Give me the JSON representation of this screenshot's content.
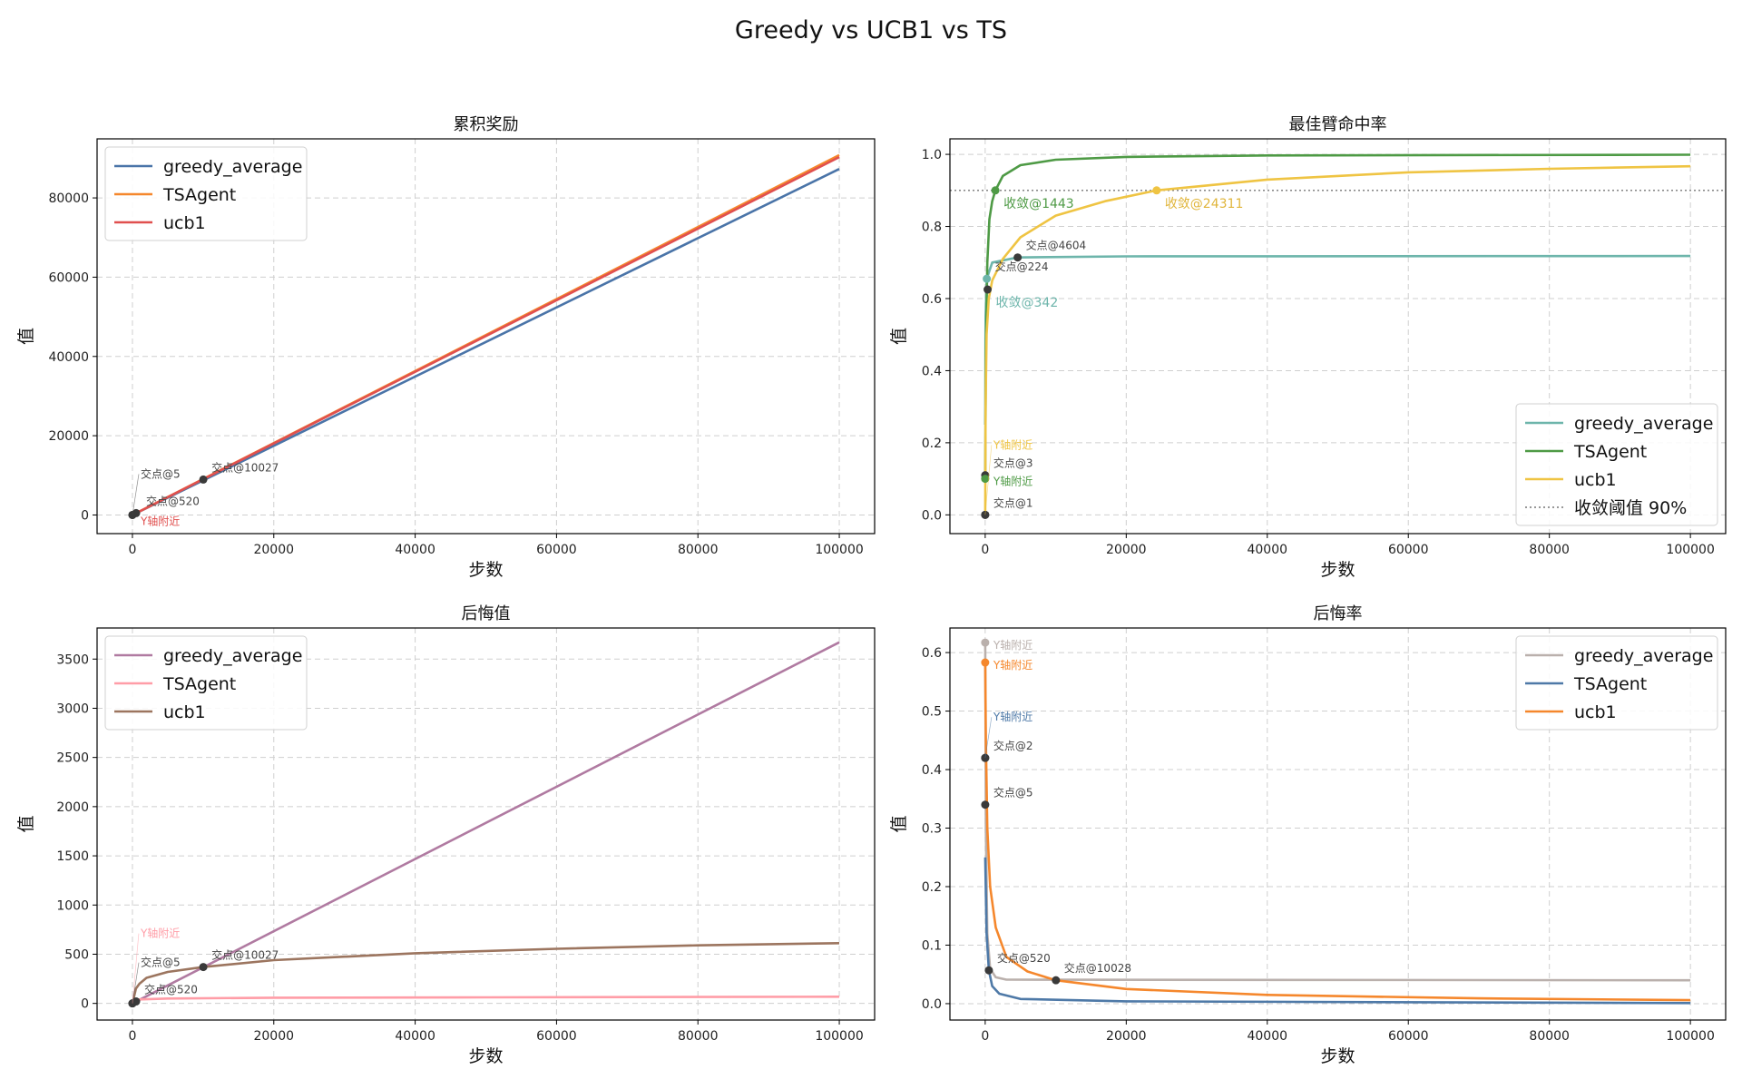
{
  "figure_title": "Greedy vs UCB1 vs TS",
  "chart_data": [
    {
      "type": "line",
      "title": "累积奖励",
      "xlabel": "步数",
      "ylabel": "值",
      "xlim": [
        -5000,
        105000
      ],
      "ylim": [
        -4700,
        94900
      ],
      "xticks": [
        0,
        20000,
        40000,
        60000,
        80000,
        100000
      ],
      "yticks": [
        0,
        20000,
        40000,
        60000,
        80000
      ],
      "grid": true,
      "legend": "top-left",
      "series": [
        {
          "name": "greedy_average",
          "color": "#4a74a8",
          "points": [
            [
              0,
              0
            ],
            [
              100000,
              87300
            ]
          ]
        },
        {
          "name": "TSAgent",
          "color": "#f5872c",
          "points": [
            [
              0,
              0
            ],
            [
              100000,
              90800
            ]
          ]
        },
        {
          "name": "ucb1",
          "color": "#e0504f",
          "points": [
            [
              0,
              0
            ],
            [
              100000,
              90300
            ]
          ]
        }
      ],
      "annotations": [
        {
          "text": "交点@10027",
          "x": 10027,
          "y": 8950,
          "color": "#444444",
          "marker": "#3a3a3a"
        },
        {
          "text": "交点@520",
          "x": 520,
          "y": 470,
          "color": "#444444",
          "marker": "#3a3a3a",
          "dx": 1
        },
        {
          "text": "交点@5",
          "x": 5,
          "y": 5,
          "color": "#444444",
          "marker": "#3a3a3a"
        },
        {
          "text": "Y轴附近",
          "x": 0,
          "y": 0,
          "color": "#e0504f",
          "marker": "#3a3a3a",
          "dy": 1
        }
      ]
    },
    {
      "type": "line",
      "title": "最佳臂命中率",
      "xlabel": "步数",
      "ylabel": "值",
      "xlim": [
        -5000,
        105000
      ],
      "ylim": [
        -0.052,
        1.043
      ],
      "xticks": [
        0,
        20000,
        40000,
        60000,
        80000,
        100000
      ],
      "yticks": [
        0.0,
        0.2,
        0.4,
        0.6,
        0.8,
        1.0
      ],
      "ytick_decimals": 1,
      "grid": true,
      "legend": "bottom-right",
      "threshold": {
        "name": "收敛阈值 90%",
        "value": 0.9,
        "color": "#777777"
      },
      "series": [
        {
          "name": "greedy_average",
          "color": "#6db5ab",
          "points": [
            [
              0,
              0.25
            ],
            [
              50,
              0.55
            ],
            [
              224,
              0.655
            ],
            [
              1000,
              0.7
            ],
            [
              4604,
              0.714
            ],
            [
              20000,
              0.717
            ],
            [
              100000,
              0.718
            ]
          ]
        },
        {
          "name": "TSAgent",
          "color": "#4e9a45",
          "points": [
            [
              0,
              0.1
            ],
            [
              100,
              0.45
            ],
            [
              300,
              0.7
            ],
            [
              600,
              0.82
            ],
            [
              1000,
              0.87
            ],
            [
              1443,
              0.9
            ],
            [
              2500,
              0.94
            ],
            [
              5000,
              0.97
            ],
            [
              10000,
              0.985
            ],
            [
              20000,
              0.993
            ],
            [
              40000,
              0.997
            ],
            [
              100000,
              0.999
            ]
          ]
        },
        {
          "name": "ucb1",
          "color": "#efc443",
          "points": [
            [
              0,
              0
            ],
            [
              50,
              0.3
            ],
            [
              200,
              0.5
            ],
            [
              500,
              0.6
            ],
            [
              1000,
              0.65
            ],
            [
              2500,
              0.71
            ],
            [
              5000,
              0.77
            ],
            [
              10000,
              0.83
            ],
            [
              17000,
              0.87
            ],
            [
              24311,
              0.9
            ],
            [
              40000,
              0.93
            ],
            [
              60000,
              0.95
            ],
            [
              80000,
              0.96
            ],
            [
              100000,
              0.967
            ]
          ]
        }
      ],
      "annotations": [
        {
          "text": "收敛@1443",
          "x": 1443,
          "y": 0.9,
          "color": "#4e9a45",
          "marker": "#4e9a45",
          "below": true
        },
        {
          "text": "收敛@24311",
          "x": 24311,
          "y": 0.9,
          "color": "#e0b53a",
          "marker": "#efc443",
          "below": true
        },
        {
          "text": "交点@4604",
          "x": 4604,
          "y": 0.714,
          "color": "#444444",
          "marker": "#3a3a3a"
        },
        {
          "text": "交点@224",
          "x": 224,
          "y": 0.655,
          "color": "#444444",
          "marker": "#6db5ab"
        },
        {
          "text": "收敛@342",
          "x": 342,
          "y": 0.625,
          "color": "#6db5ab",
          "marker": "#3a3a3a",
          "below": true
        },
        {
          "text": "交点@3",
          "x": 3,
          "y": 0.11,
          "color": "#444444",
          "marker": "#3a3a3a"
        },
        {
          "text": "Y轴附近",
          "x": 0,
          "y": 0.1,
          "color": "#4e9a45",
          "marker": "#4e9a45"
        },
        {
          "text": "交点@1",
          "x": 1,
          "y": 0.0,
          "color": "#444444",
          "marker": "#3a3a3a"
        },
        {
          "text": "Y轴附近",
          "x": 0,
          "y": 0.0,
          "color": "#efc443",
          "marker": "#3a3a3a"
        }
      ]
    },
    {
      "type": "line",
      "title": "后悔值",
      "xlabel": "步数",
      "ylabel": "值",
      "xlim": [
        -5000,
        105000
      ],
      "ylim": [
        -169,
        3816
      ],
      "xticks": [
        0,
        20000,
        40000,
        60000,
        80000,
        100000
      ],
      "yticks": [
        0,
        500,
        1000,
        1500,
        2000,
        2500,
        3000,
        3500
      ],
      "grid": true,
      "legend": "top-left",
      "series": [
        {
          "name": "greedy_average",
          "color": "#b07aa1",
          "points": [
            [
              0,
              0
            ],
            [
              100000,
              3670
            ]
          ]
        },
        {
          "name": "TSAgent",
          "color": "#ff9da7",
          "points": [
            [
              0,
              0
            ],
            [
              500,
              30
            ],
            [
              1000,
              40
            ],
            [
              5000,
              50
            ],
            [
              20000,
              58
            ],
            [
              50000,
              62
            ],
            [
              100000,
              68
            ]
          ]
        },
        {
          "name": "ucb1",
          "color": "#9c755f",
          "points": [
            [
              0,
              0
            ],
            [
              500,
              150
            ],
            [
              1000,
              200
            ],
            [
              2000,
              260
            ],
            [
              5000,
              320
            ],
            [
              10027,
              370
            ],
            [
              20000,
              440
            ],
            [
              40000,
              510
            ],
            [
              60000,
              555
            ],
            [
              80000,
              590
            ],
            [
              100000,
              612
            ]
          ]
        }
      ],
      "annotations": [
        {
          "text": "交点@10027",
          "x": 10027,
          "y": 370,
          "color": "#444444",
          "marker": "#3a3a3a"
        },
        {
          "text": "交点@520",
          "x": 520,
          "y": 20,
          "color": "#444444",
          "marker": "#3a3a3a"
        },
        {
          "text": "交点@5",
          "x": 5,
          "y": 0,
          "color": "#444444",
          "marker": "#3a3a3a"
        },
        {
          "text": "Y轴附近",
          "x": 0,
          "y": 0,
          "color": "#ff9da7",
          "marker": "#3a3a3a"
        }
      ]
    },
    {
      "type": "line",
      "title": "后悔率",
      "xlabel": "步数",
      "ylabel": "值",
      "xlim": [
        -5000,
        105000
      ],
      "ylim": [
        -0.028,
        0.642
      ],
      "xticks": [
        0,
        20000,
        40000,
        60000,
        80000,
        100000
      ],
      "yticks": [
        0.0,
        0.1,
        0.2,
        0.3,
        0.4,
        0.5,
        0.6
      ],
      "ytick_decimals": 1,
      "grid": true,
      "legend": "top-right",
      "series": [
        {
          "name": "greedy_average",
          "color": "#bab0ac",
          "points": [
            [
              0,
              0.617
            ],
            [
              100,
              0.3
            ],
            [
              300,
              0.12
            ],
            [
              700,
              0.06
            ],
            [
              1500,
              0.045
            ],
            [
              3000,
              0.041
            ],
            [
              100000,
              0.04
            ]
          ]
        },
        {
          "name": "TSAgent",
          "color": "#4e79a7",
          "points": [
            [
              0,
              0.25
            ],
            [
              200,
              0.12
            ],
            [
              520,
              0.057
            ],
            [
              1000,
              0.03
            ],
            [
              2000,
              0.017
            ],
            [
              5000,
              0.008
            ],
            [
              20000,
              0.004
            ],
            [
              100000,
              0.001
            ]
          ]
        },
        {
          "name": "ucb1",
          "color": "#f5872c",
          "points": [
            [
              0,
              0.583
            ],
            [
              100,
              0.45
            ],
            [
              300,
              0.3
            ],
            [
              700,
              0.2
            ],
            [
              1500,
              0.13
            ],
            [
              3000,
              0.08
            ],
            [
              6000,
              0.055
            ],
            [
              10028,
              0.04
            ],
            [
              20000,
              0.025
            ],
            [
              40000,
              0.015
            ],
            [
              70000,
              0.009
            ],
            [
              100000,
              0.006
            ]
          ]
        }
      ],
      "annotations": [
        {
          "text": "Y轴附近",
          "x": 0,
          "y": 0.617,
          "color": "#bab0ac",
          "marker": "#bab0ac"
        },
        {
          "text": "Y轴附近",
          "x": 0,
          "y": 0.583,
          "color": "#f5872c",
          "marker": "#f5872c"
        },
        {
          "text": "交点@2",
          "x": 2,
          "y": 0.42,
          "color": "#444444",
          "marker": "#3a3a3a"
        },
        {
          "text": "Y轴附近",
          "x": 0,
          "y": 0.42,
          "color": "#4e79a7",
          "marker": "#3a3a3a"
        },
        {
          "text": "交点@5",
          "x": 5,
          "y": 0.34,
          "color": "#444444",
          "marker": "#3a3a3a"
        },
        {
          "text": "交点@520",
          "x": 520,
          "y": 0.057,
          "color": "#444444",
          "marker": "#3a3a3a"
        },
        {
          "text": "交点@10028",
          "x": 10028,
          "y": 0.04,
          "color": "#444444",
          "marker": "#3a3a3a"
        }
      ]
    }
  ]
}
